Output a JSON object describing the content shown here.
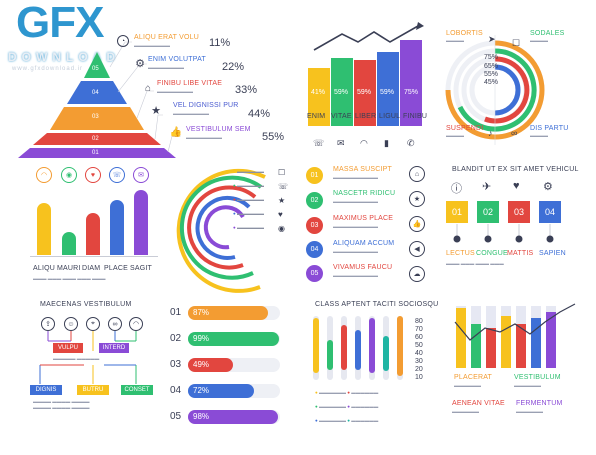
{
  "logo": {
    "main": "GFX",
    "sub": "DOWNLOAD",
    "url": "www.gfxdownload.ir"
  },
  "pyramid": {
    "levels": [
      "05",
      "04",
      "03",
      "02",
      "01"
    ],
    "items": [
      {
        "label": "ALIQU ERAT VOLU",
        "pct": "11%"
      },
      {
        "label": "ENIM VOLUTPAT",
        "pct": "22%"
      },
      {
        "label": "FINIBU LIBE VITAE",
        "pct": "33%"
      },
      {
        "label": "VEL DIGNISSI PUR",
        "pct": "44%"
      },
      {
        "label": "VESTIBULUM SEM",
        "pct": "55%"
      }
    ]
  },
  "growth": {
    "values": [
      "41%",
      "59%",
      "59%",
      "59%",
      "75%"
    ],
    "labels": [
      "ENIM",
      "VITAE",
      "LIBER",
      "LIGUL",
      "FINIBU"
    ]
  },
  "rings": {
    "tl": "LOBORTIS",
    "tr": "SODALES",
    "bl": "SUSPENDI",
    "br": "DIS PARTU",
    "values": [
      "75%",
      "65%",
      "55%",
      "45%"
    ]
  },
  "vbars": {
    "labels": [
      "ALIQU",
      "MAURI",
      "DIAM",
      "PLACE",
      "SAGIT"
    ]
  },
  "options": {
    "items": [
      {
        "num": "01",
        "label": "MASSA SUSCIPT"
      },
      {
        "num": "02",
        "label": "NASCETR RIDICU"
      },
      {
        "num": "03",
        "label": "MAXIMUS PLACE"
      },
      {
        "num": "04",
        "label": "ALIQUAM ACCUM"
      },
      {
        "num": "05",
        "label": "VIVAMUS FAUCU"
      }
    ]
  },
  "steps": {
    "title": "BLANDIT UT EX SIT AMET VEHICUL",
    "nums": [
      "01",
      "02",
      "03",
      "04"
    ],
    "labels": [
      "LECTUS",
      "CONGUE",
      "MATTIS",
      "SAPIEN"
    ]
  },
  "tree": {
    "title": "MAECENAS VESTIBULUM",
    "mid": [
      "VULPU",
      "INTERD"
    ],
    "bottom": [
      "DIGNIS",
      "BUTRU",
      "CONSET"
    ]
  },
  "progress": {
    "items": [
      {
        "num": "01",
        "pct": "87%",
        "value": 87
      },
      {
        "num": "02",
        "pct": "99%",
        "value": 99
      },
      {
        "num": "03",
        "pct": "49%",
        "value": 49
      },
      {
        "num": "04",
        "pct": "72%",
        "value": 72
      },
      {
        "num": "05",
        "pct": "98%",
        "value": 98
      }
    ]
  },
  "thin": {
    "title": "CLASS APTENT TACITI SOCIOSQU",
    "axis": [
      "80",
      "70",
      "60",
      "50",
      "40",
      "30",
      "20",
      "10"
    ]
  },
  "combo": {
    "labels": [
      "PLACERAT",
      "VESTIBULUM",
      "AENEAN VITAE",
      "FERMENTUM"
    ]
  },
  "colors": {
    "orange": "#f39c32",
    "green": "#2fbf71",
    "red": "#e2463f",
    "blue": "#3e6fd6",
    "purple": "#8a4bd6",
    "yellow": "#f7c21e",
    "teal": "#1fb5a3"
  }
}
